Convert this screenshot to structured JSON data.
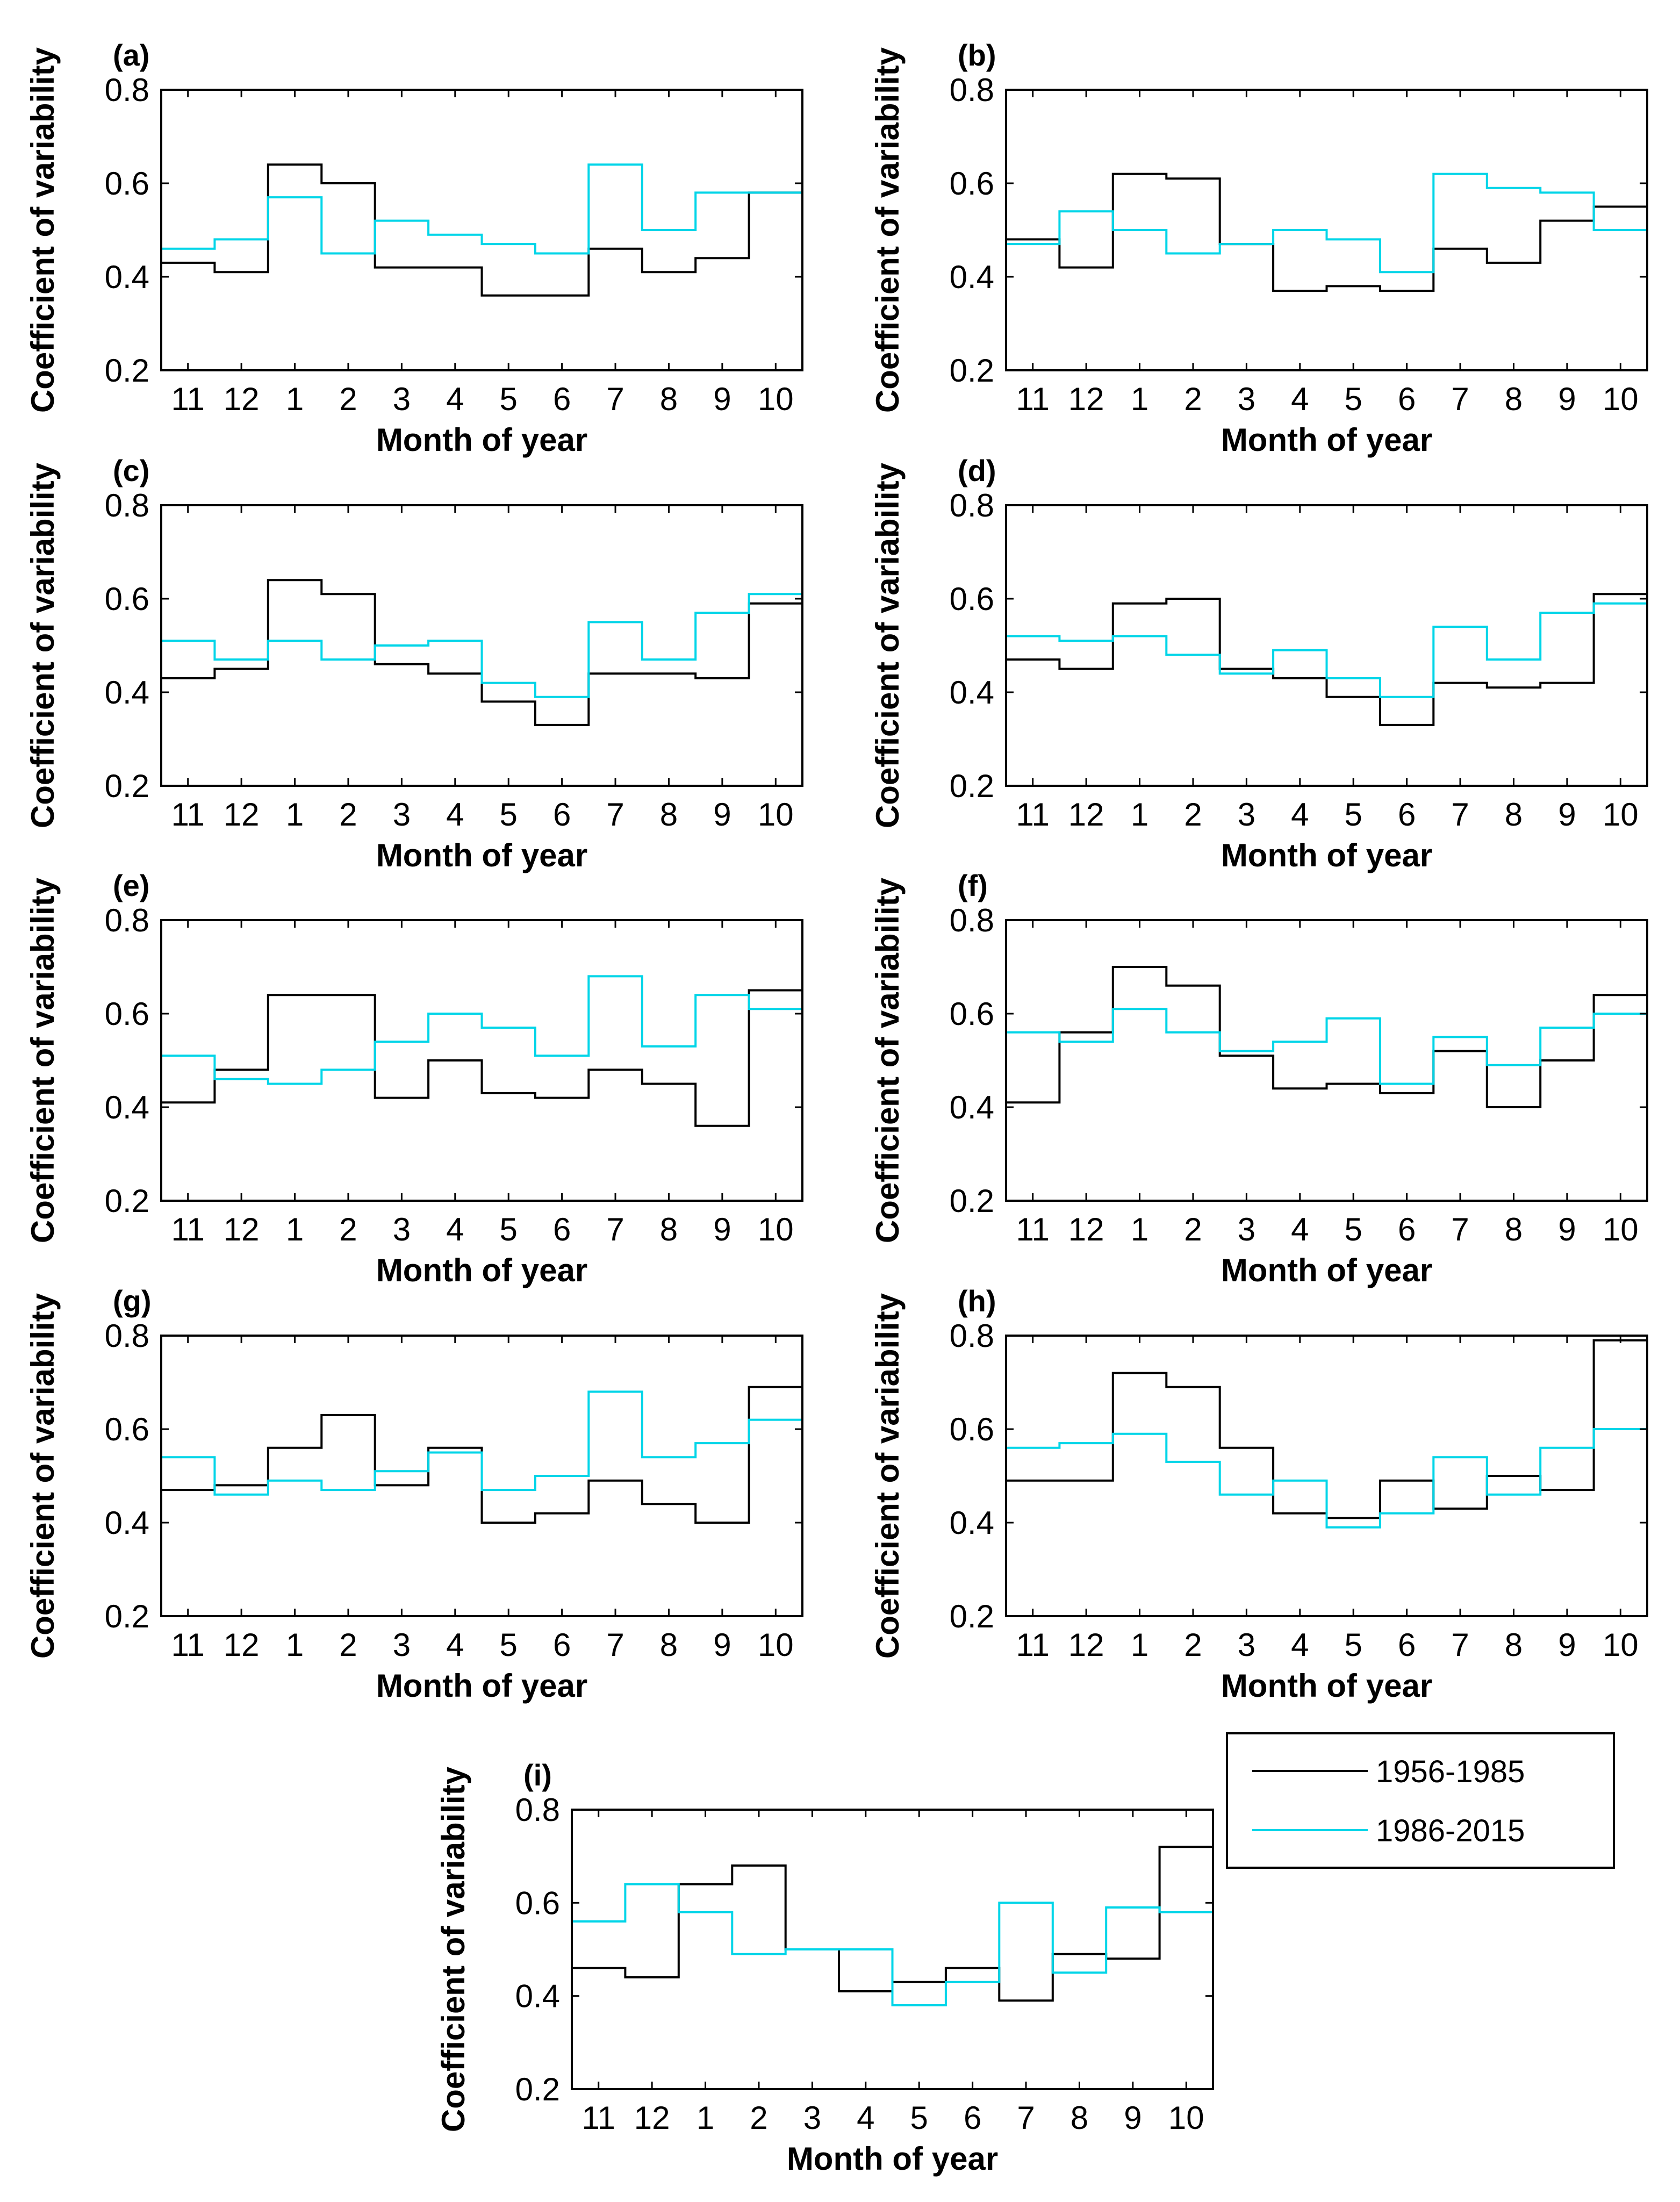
{
  "figure": {
    "series_names": [
      "1956-1985",
      "1986-2015"
    ],
    "series_colors": [
      "#000000",
      "#00D5E8"
    ]
  },
  "legend": {
    "entries": [
      {
        "label": "1956-1985",
        "color": "#000000"
      },
      {
        "label": "1986-2015",
        "color": "#00D5E8"
      }
    ]
  },
  "chart_data": [
    {
      "type": "line",
      "panel": "(a)",
      "xlabel": "Month of year",
      "ylabel": "Coefficient of variability",
      "categories": [
        "11",
        "12",
        "1",
        "2",
        "3",
        "4",
        "5",
        "6",
        "7",
        "8",
        "9",
        "10"
      ],
      "ylim": [
        0.2,
        0.8
      ],
      "yticks": [
        "0.2",
        "0.4",
        "0.6",
        "0.8"
      ],
      "series": [
        {
          "name": "1956-1985",
          "values": [
            0.43,
            0.41,
            0.64,
            0.6,
            0.42,
            0.42,
            0.36,
            0.36,
            0.46,
            0.41,
            0.44,
            0.58
          ]
        },
        {
          "name": "1986-2015",
          "values": [
            0.46,
            0.48,
            0.57,
            0.45,
            0.52,
            0.49,
            0.47,
            0.45,
            0.64,
            0.5,
            0.58,
            0.58
          ]
        }
      ]
    },
    {
      "type": "line",
      "panel": "(b)",
      "xlabel": "Month of year",
      "ylabel": "Coefficient of variability",
      "categories": [
        "11",
        "12",
        "1",
        "2",
        "3",
        "4",
        "5",
        "6",
        "7",
        "8",
        "9",
        "10"
      ],
      "ylim": [
        0.2,
        0.8
      ],
      "yticks": [
        "0.2",
        "0.4",
        "0.6",
        "0.8"
      ],
      "series": [
        {
          "name": "1956-1985",
          "values": [
            0.48,
            0.42,
            0.62,
            0.61,
            0.47,
            0.37,
            0.38,
            0.37,
            0.46,
            0.43,
            0.52,
            0.55
          ]
        },
        {
          "name": "1986-2015",
          "values": [
            0.47,
            0.54,
            0.5,
            0.45,
            0.47,
            0.5,
            0.48,
            0.41,
            0.62,
            0.59,
            0.58,
            0.5
          ]
        }
      ]
    },
    {
      "type": "line",
      "panel": "(c)",
      "xlabel": "Month of year",
      "ylabel": "Coefficient of variability",
      "categories": [
        "11",
        "12",
        "1",
        "2",
        "3",
        "4",
        "5",
        "6",
        "7",
        "8",
        "9",
        "10"
      ],
      "ylim": [
        0.2,
        0.8
      ],
      "yticks": [
        "0.2",
        "0.4",
        "0.6",
        "0.8"
      ],
      "series": [
        {
          "name": "1956-1985",
          "values": [
            0.43,
            0.45,
            0.64,
            0.61,
            0.46,
            0.44,
            0.38,
            0.33,
            0.44,
            0.44,
            0.43,
            0.59
          ]
        },
        {
          "name": "1986-2015",
          "values": [
            0.51,
            0.47,
            0.51,
            0.47,
            0.5,
            0.51,
            0.42,
            0.39,
            0.55,
            0.47,
            0.57,
            0.61
          ]
        }
      ]
    },
    {
      "type": "line",
      "panel": "(d)",
      "xlabel": "Month of year",
      "ylabel": "Coefficient of variability",
      "categories": [
        "11",
        "12",
        "1",
        "2",
        "3",
        "4",
        "5",
        "6",
        "7",
        "8",
        "9",
        "10"
      ],
      "ylim": [
        0.2,
        0.8
      ],
      "yticks": [
        "0.2",
        "0.4",
        "0.6",
        "0.8"
      ],
      "series": [
        {
          "name": "1956-1985",
          "values": [
            0.47,
            0.45,
            0.59,
            0.6,
            0.45,
            0.43,
            0.39,
            0.33,
            0.42,
            0.41,
            0.42,
            0.61
          ]
        },
        {
          "name": "1986-2015",
          "values": [
            0.52,
            0.51,
            0.52,
            0.48,
            0.44,
            0.49,
            0.43,
            0.39,
            0.54,
            0.47,
            0.57,
            0.59
          ]
        }
      ]
    },
    {
      "type": "line",
      "panel": "(e)",
      "xlabel": "Month of year",
      "ylabel": "Coefficient of variability",
      "categories": [
        "11",
        "12",
        "1",
        "2",
        "3",
        "4",
        "5",
        "6",
        "7",
        "8",
        "9",
        "10"
      ],
      "ylim": [
        0.2,
        0.8
      ],
      "yticks": [
        "0.2",
        "0.4",
        "0.6",
        "0.8"
      ],
      "series": [
        {
          "name": "1956-1985",
          "values": [
            0.41,
            0.48,
            0.64,
            0.64,
            0.42,
            0.5,
            0.43,
            0.42,
            0.48,
            0.45,
            0.36,
            0.65
          ]
        },
        {
          "name": "1986-2015",
          "values": [
            0.51,
            0.46,
            0.45,
            0.48,
            0.54,
            0.6,
            0.57,
            0.51,
            0.68,
            0.53,
            0.64,
            0.61
          ]
        }
      ]
    },
    {
      "type": "line",
      "panel": "(f)",
      "xlabel": "Month of year",
      "ylabel": "Coefficient of variability",
      "categories": [
        "11",
        "12",
        "1",
        "2",
        "3",
        "4",
        "5",
        "6",
        "7",
        "8",
        "9",
        "10"
      ],
      "ylim": [
        0.2,
        0.8
      ],
      "yticks": [
        "0.2",
        "0.4",
        "0.6",
        "0.8"
      ],
      "series": [
        {
          "name": "1956-1985",
          "values": [
            0.41,
            0.56,
            0.7,
            0.66,
            0.51,
            0.44,
            0.45,
            0.43,
            0.52,
            0.4,
            0.5,
            0.64
          ]
        },
        {
          "name": "1986-2015",
          "values": [
            0.56,
            0.54,
            0.61,
            0.56,
            0.52,
            0.54,
            0.59,
            0.45,
            0.55,
            0.49,
            0.57,
            0.6
          ]
        }
      ]
    },
    {
      "type": "line",
      "panel": "(g)",
      "xlabel": "Month of year",
      "ylabel": "Coefficient of variability",
      "categories": [
        "11",
        "12",
        "1",
        "2",
        "3",
        "4",
        "5",
        "6",
        "7",
        "8",
        "9",
        "10"
      ],
      "ylim": [
        0.2,
        0.8
      ],
      "yticks": [
        "0.2",
        "0.4",
        "0.6",
        "0.8"
      ],
      "series": [
        {
          "name": "1956-1985",
          "values": [
            0.47,
            0.48,
            0.56,
            0.63,
            0.48,
            0.56,
            0.4,
            0.42,
            0.49,
            0.44,
            0.4,
            0.69
          ]
        },
        {
          "name": "1986-2015",
          "values": [
            0.54,
            0.46,
            0.49,
            0.47,
            0.51,
            0.55,
            0.47,
            0.5,
            0.68,
            0.54,
            0.57,
            0.62
          ]
        }
      ]
    },
    {
      "type": "line",
      "panel": "(h)",
      "xlabel": "Month of year",
      "ylabel": "Coefficient of variability",
      "categories": [
        "11",
        "12",
        "1",
        "2",
        "3",
        "4",
        "5",
        "6",
        "7",
        "8",
        "9",
        "10"
      ],
      "ylim": [
        0.2,
        0.8
      ],
      "yticks": [
        "0.2",
        "0.4",
        "0.6",
        "0.8"
      ],
      "series": [
        {
          "name": "1956-1985",
          "values": [
            0.49,
            0.49,
            0.72,
            0.69,
            0.56,
            0.42,
            0.41,
            0.49,
            0.43,
            0.5,
            0.47,
            0.79
          ]
        },
        {
          "name": "1986-2015",
          "values": [
            0.56,
            0.57,
            0.59,
            0.53,
            0.46,
            0.49,
            0.39,
            0.42,
            0.54,
            0.46,
            0.56,
            0.6
          ]
        }
      ]
    },
    {
      "type": "line",
      "panel": "(i)",
      "xlabel": "Month of year",
      "ylabel": "Coefficient of variability",
      "categories": [
        "11",
        "12",
        "1",
        "2",
        "3",
        "4",
        "5",
        "6",
        "7",
        "8",
        "9",
        "10"
      ],
      "ylim": [
        0.2,
        0.8
      ],
      "yticks": [
        "0.2",
        "0.4",
        "0.6",
        "0.8"
      ],
      "series": [
        {
          "name": "1956-1985",
          "values": [
            0.46,
            0.44,
            0.64,
            0.68,
            0.5,
            0.41,
            0.43,
            0.46,
            0.39,
            0.49,
            0.48,
            0.72
          ]
        },
        {
          "name": "1986-2015",
          "values": [
            0.56,
            0.64,
            0.58,
            0.49,
            0.5,
            0.5,
            0.38,
            0.43,
            0.6,
            0.45,
            0.59,
            0.58
          ]
        }
      ]
    }
  ]
}
